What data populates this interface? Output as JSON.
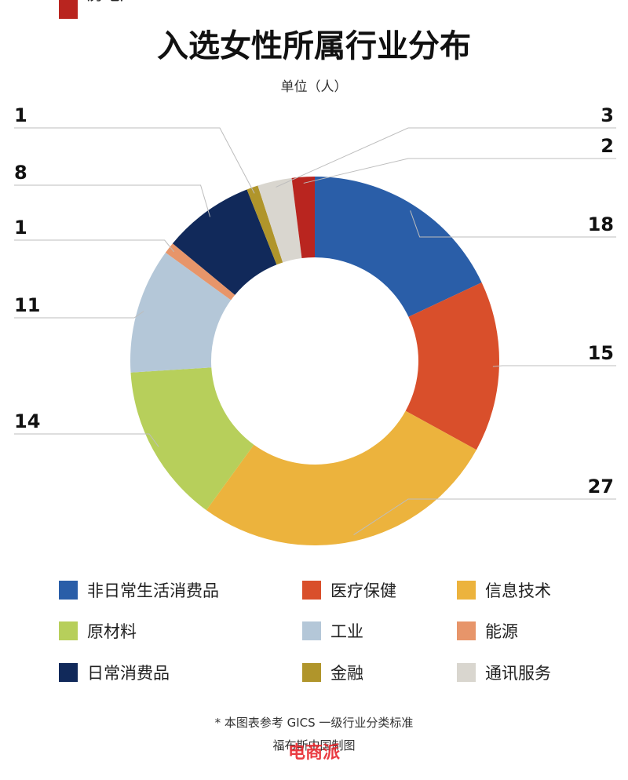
{
  "chart_data": {
    "type": "pie",
    "title": "入选女性所属行业分布",
    "subtitle": "单位（人）",
    "slices": [
      {
        "label": "非日常生活消费品",
        "value": 18,
        "color": "#2a5ea8"
      },
      {
        "label": "医疗保健",
        "value": 15,
        "color": "#d94f2b"
      },
      {
        "label": "信息技术",
        "value": 27,
        "color": "#ecb33d"
      },
      {
        "label": "原材料",
        "value": 14,
        "color": "#b7cf5b"
      },
      {
        "label": "工业",
        "value": 11,
        "color": "#b4c7d8"
      },
      {
        "label": "能源",
        "value": 1,
        "color": "#e7956a"
      },
      {
        "label": "日常消费品",
        "value": 8,
        "color": "#11295a"
      },
      {
        "label": "金融",
        "value": 1,
        "color": "#b0952b"
      },
      {
        "label": "通讯服务",
        "value": 3,
        "color": "#d9d6cf"
      },
      {
        "label": "房地产",
        "value": 2,
        "color": "#b9251f"
      }
    ],
    "footnote": "* 本图表参考 GICS 一级行业分类标准",
    "credit": "福布斯中国制图"
  },
  "watermark": "电商派"
}
